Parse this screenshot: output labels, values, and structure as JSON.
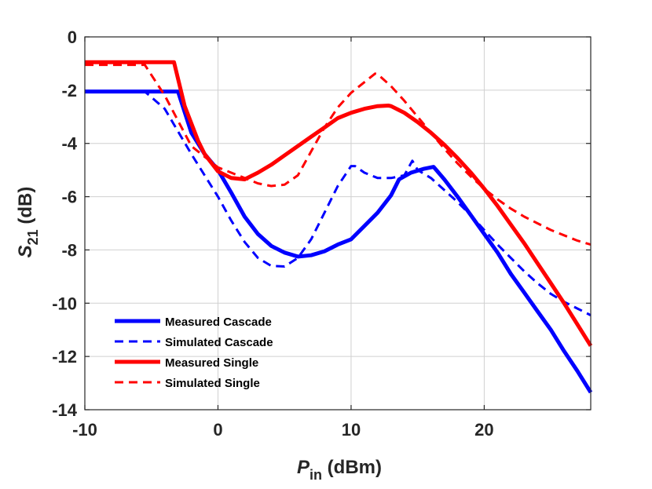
{
  "chart_data": {
    "type": "line",
    "xlabel_main": "P",
    "xlabel_sub": "in",
    "xlabel_unit": " (dBm)",
    "ylabel_main": "S",
    "ylabel_sub": "21",
    "ylabel_unit": " (dB)",
    "xlim": [
      -10,
      28
    ],
    "ylim": [
      -14,
      0
    ],
    "xticks": [
      -10,
      0,
      10,
      20
    ],
    "yticks": [
      0,
      -2,
      -4,
      -6,
      -8,
      -10,
      -12,
      -14
    ],
    "grid": true,
    "legend_position": "bottom-left",
    "series": [
      {
        "name": "Measured Cascade",
        "color": "#0000ff",
        "style": "solid",
        "x": [
          -10,
          -3,
          -2,
          -1,
          0,
          1,
          2,
          3,
          4,
          5,
          6,
          7,
          8,
          9,
          10,
          11,
          12,
          13,
          13.6,
          14.5,
          15.5,
          16.2,
          17,
          18,
          19,
          20,
          21,
          22,
          23,
          24,
          25,
          26,
          27,
          28
        ],
        "y": [
          -2.05,
          -2.05,
          -3.6,
          -4.4,
          -5.0,
          -5.85,
          -6.75,
          -7.4,
          -7.85,
          -8.1,
          -8.25,
          -8.2,
          -8.05,
          -7.8,
          -7.6,
          -7.1,
          -6.6,
          -5.95,
          -5.35,
          -5.1,
          -4.95,
          -4.88,
          -5.35,
          -6.0,
          -6.7,
          -7.4,
          -8.1,
          -8.9,
          -9.6,
          -10.3,
          -11.0,
          -11.8,
          -12.55,
          -13.35
        ]
      },
      {
        "name": "Simulated Cascade",
        "color": "#0000ff",
        "style": "dashed",
        "x": [
          -10,
          -5.5,
          -4,
          -2,
          0,
          1,
          2,
          3,
          4,
          5,
          6,
          7,
          8,
          9,
          10,
          10.3,
          11,
          12,
          13,
          14,
          14.6,
          15,
          16,
          17,
          18,
          19,
          20,
          21,
          22,
          23,
          24,
          25,
          26,
          27,
          28
        ],
        "y": [
          -2.05,
          -2.05,
          -2.7,
          -4.4,
          -6.0,
          -6.9,
          -7.7,
          -8.3,
          -8.6,
          -8.62,
          -8.3,
          -7.6,
          -6.6,
          -5.6,
          -4.85,
          -4.85,
          -5.1,
          -5.3,
          -5.3,
          -5.2,
          -4.65,
          -5.0,
          -5.3,
          -5.75,
          -6.2,
          -6.7,
          -7.25,
          -7.8,
          -8.3,
          -8.8,
          -9.25,
          -9.65,
          -9.95,
          -10.2,
          -10.45
        ]
      },
      {
        "name": "Measured Single",
        "color": "#ff0000",
        "style": "solid",
        "x": [
          -10,
          -3.3,
          -2.5,
          -1.5,
          -1,
          0,
          1,
          2,
          3,
          4,
          5,
          6,
          7,
          8,
          9,
          10,
          11,
          12,
          12.8,
          13,
          14,
          15,
          16,
          17,
          18,
          19,
          20,
          21,
          22,
          23,
          24,
          25,
          26,
          27,
          28
        ],
        "y": [
          -0.95,
          -0.95,
          -2.6,
          -3.9,
          -4.4,
          -5.05,
          -5.3,
          -5.35,
          -5.1,
          -4.8,
          -4.45,
          -4.1,
          -3.75,
          -3.4,
          -3.05,
          -2.85,
          -2.7,
          -2.6,
          -2.58,
          -2.6,
          -2.85,
          -3.2,
          -3.6,
          -4.05,
          -4.55,
          -5.1,
          -5.7,
          -6.35,
          -7.05,
          -7.75,
          -8.5,
          -9.25,
          -10.0,
          -10.8,
          -11.6
        ]
      },
      {
        "name": "Simulated Single",
        "color": "#ff0000",
        "style": "dashed",
        "x": [
          -10,
          -5.5,
          -4,
          -2,
          0,
          1,
          2,
          3,
          4,
          5,
          6,
          7,
          8,
          9,
          10,
          11,
          11.8,
          12,
          13,
          14,
          15,
          16,
          17,
          18,
          19,
          20,
          21,
          22,
          23,
          24,
          25,
          26,
          27,
          28
        ],
        "y": [
          -1.05,
          -1.05,
          -2.2,
          -4.1,
          -4.9,
          -5.1,
          -5.3,
          -5.5,
          -5.6,
          -5.55,
          -5.2,
          -4.3,
          -3.4,
          -2.65,
          -2.1,
          -1.7,
          -1.38,
          -1.4,
          -1.85,
          -2.4,
          -3.0,
          -3.6,
          -4.2,
          -4.75,
          -5.25,
          -5.7,
          -6.1,
          -6.45,
          -6.75,
          -7.0,
          -7.25,
          -7.45,
          -7.65,
          -7.8
        ]
      }
    ]
  }
}
